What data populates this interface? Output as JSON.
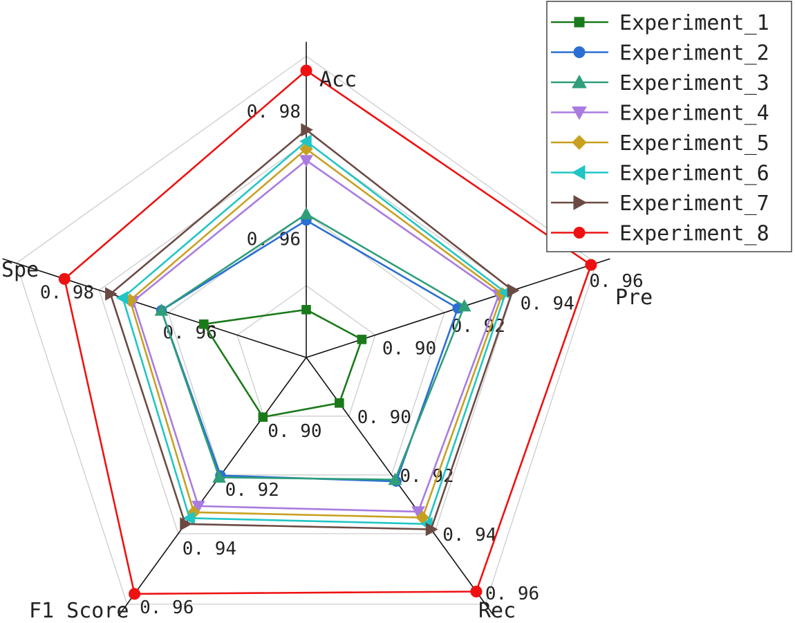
{
  "chart_data": {
    "type": "radar",
    "axes": [
      {
        "name": "Acc",
        "ticks": [
          "0.98",
          "0.96"
        ],
        "min": 0.94,
        "max": 0.985
      },
      {
        "name": "Pre",
        "ticks": [
          "0.96",
          "0.94",
          "0.92",
          "0.90"
        ],
        "min": 0.88,
        "max": 0.96
      },
      {
        "name": "Rec",
        "ticks": [
          "0.96",
          "0.94",
          "0.92",
          "0.90"
        ],
        "min": 0.88,
        "max": 0.96
      },
      {
        "name": "F1 Score",
        "ticks": [
          "0.96",
          "0.94",
          "0.92",
          "0.90"
        ],
        "min": 0.88,
        "max": 0.96
      },
      {
        "name": "Spe",
        "ticks": [
          "0.98",
          "0.96"
        ],
        "min": 0.94,
        "max": 0.985
      }
    ],
    "grid_levels": 4,
    "legend_position": "top-right",
    "series": [
      {
        "name": "Experiment_1",
        "color": "#1a7a1a",
        "marker": "square",
        "values": [
          0.9475,
          0.8961,
          0.8955,
          0.9003,
          0.9567
        ]
      },
      {
        "name": "Experiment_2",
        "color": "#2a6fd4",
        "marker": "circle",
        "values": [
          0.9615,
          0.9239,
          0.9222,
          0.9202,
          0.9636
        ]
      },
      {
        "name": "Experiment_3",
        "color": "#2f9e7a",
        "marker": "triangle-up",
        "values": [
          0.9625,
          0.9258,
          0.9216,
          0.9208,
          0.9636
        ]
      },
      {
        "name": "Experiment_4",
        "color": "#a97be0",
        "marker": "triangle-down",
        "values": [
          0.9709,
          0.9358,
          0.9325,
          0.9306,
          0.9682
        ]
      },
      {
        "name": "Experiment_5",
        "color": "#c8a020",
        "marker": "diamond",
        "values": [
          0.9727,
          0.9368,
          0.9345,
          0.9327,
          0.9687
        ]
      },
      {
        "name": "Experiment_6",
        "color": "#21c5c5",
        "marker": "triangle-left",
        "values": [
          0.9739,
          0.9378,
          0.9367,
          0.9347,
          0.9699
        ]
      },
      {
        "name": "Experiment_7",
        "color": "#6b4a44",
        "marker": "triangle-right",
        "values": [
          0.9757,
          0.9398,
          0.9385,
          0.9367,
          0.9719
        ]
      },
      {
        "name": "Experiment_8",
        "color": "#ee1111",
        "marker": "circle",
        "values": [
          0.985,
          0.9625,
          0.9597,
          0.9605,
          0.9794
        ]
      }
    ]
  }
}
